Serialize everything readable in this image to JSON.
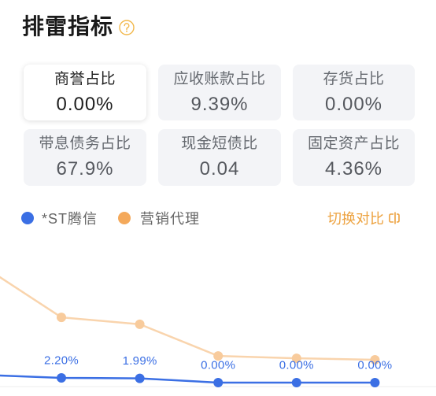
{
  "header": {
    "title": "排雷指标",
    "help_icon": "question-circle-icon"
  },
  "metrics": [
    {
      "label": "商誉占比",
      "value": "0.00%",
      "selected": true
    },
    {
      "label": "应收账款占比",
      "value": "9.39%",
      "selected": false
    },
    {
      "label": "存货占比",
      "value": "0.00%",
      "selected": false
    },
    {
      "label": "带息债务占比",
      "value": "67.9%",
      "selected": false
    },
    {
      "label": "现金短债比",
      "value": "0.04",
      "selected": false
    },
    {
      "label": "固定资产占比",
      "value": "4.36%",
      "selected": false
    }
  ],
  "compare_toggle": {
    "label": "切换对比",
    "icon": "switch-compare-icon"
  },
  "colors": {
    "title": "#1a1a1a",
    "accent": "#eda23f",
    "help_icon": "#f2b84b",
    "card_bg": "#f3f4f7",
    "selected_card_bg": "#ffffff",
    "muted_text": "#666a70"
  },
  "chart_data": {
    "type": "line",
    "ylim": [
      0,
      68
    ],
    "grid": false,
    "legend_position": "top-left",
    "series": [
      {
        "name": "*ST腾信",
        "color": "#3b6fe4",
        "line_color": "#3b6fe4",
        "point_color": "#3b6fe4",
        "values": [
          3.6,
          2.2,
          1.99,
          0.0,
          0.0,
          0.0
        ],
        "labels": [
          "",
          "2.20%",
          "1.99%",
          "0.00%",
          "0.00%",
          "0.00%"
        ]
      },
      {
        "name": "营销代理",
        "color": "#f4a95b",
        "line_color": "#f9d4ad",
        "point_color": "#f8cb9c",
        "values": [
          54.1,
          30.3,
          27.1,
          12.4,
          11.3,
          10.6
        ],
        "labels": []
      }
    ]
  }
}
